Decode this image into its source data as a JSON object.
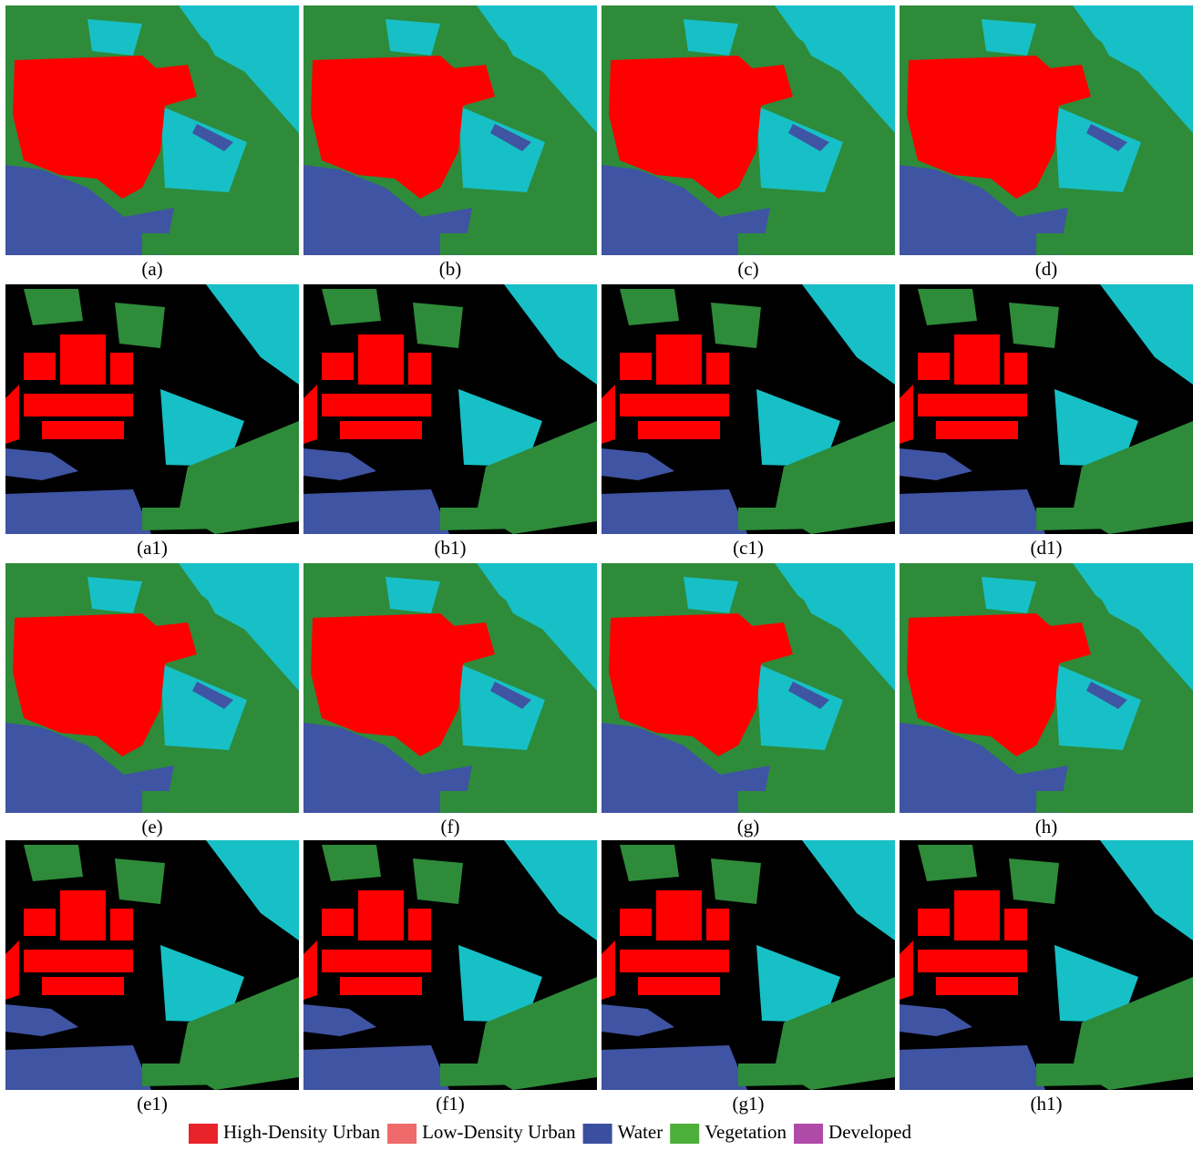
{
  "panels": [
    {
      "caption": "(a)"
    },
    {
      "caption": "(b)"
    },
    {
      "caption": "(c)"
    },
    {
      "caption": "(d)"
    },
    {
      "caption": "(a1)"
    },
    {
      "caption": "(b1)"
    },
    {
      "caption": "(c1)"
    },
    {
      "caption": "(d1)"
    },
    {
      "caption": "(e)"
    },
    {
      "caption": "(f)"
    },
    {
      "caption": "(g)"
    },
    {
      "caption": "(h)"
    },
    {
      "caption": "(e1)"
    },
    {
      "caption": "(f1)"
    },
    {
      "caption": "(g1)"
    },
    {
      "caption": "(h1)"
    }
  ],
  "legend": [
    {
      "label": "High-Density Urban",
      "color": "#e8232a"
    },
    {
      "label": "Low-Density Urban",
      "color": "#ef6a6a"
    },
    {
      "label": "Water",
      "color": "#3b4fa0"
    },
    {
      "label": "Vegetation",
      "color": "#4caf3a"
    },
    {
      "label": "Developed",
      "color": "#b04aa8"
    }
  ]
}
